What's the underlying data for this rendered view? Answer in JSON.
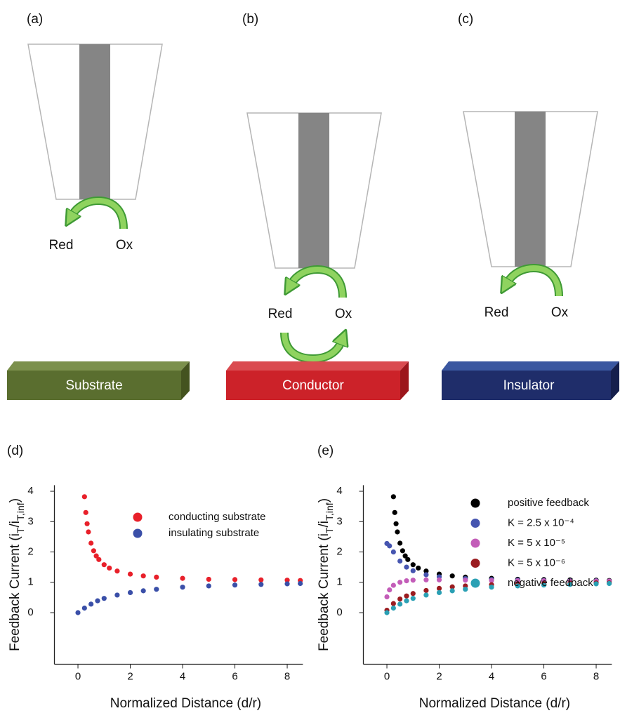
{
  "diagrams": {
    "panels": [
      {
        "label": "(a)",
        "red": "Red",
        "ox": "Ox",
        "substrate": "Substrate"
      },
      {
        "label": "(b)",
        "red": "Red",
        "ox": "Ox",
        "substrate": "Conductor"
      },
      {
        "label": "(c)",
        "red": "Red",
        "ox": "Ox",
        "substrate": "Insulator"
      }
    ]
  },
  "chart_data": [
    {
      "type": "scatter",
      "title": "(d)",
      "x_label": "Normalized Distance (d/r)",
      "y_label": [
        "Feedback Current (i",
        "T",
        "/i",
        "T,inf",
        ")"
      ],
      "xlim": [
        -0.9,
        8.6
      ],
      "ylim": [
        -1.7,
        4.2
      ],
      "xticks": [
        0,
        2,
        4,
        6,
        8
      ],
      "yticks": [
        0,
        1,
        2,
        3,
        4
      ],
      "legend": "upper right",
      "series": [
        {
          "name": "conducting substrate",
          "color": "#e8202a",
          "x": [
            0.25,
            0.3,
            0.35,
            0.4,
            0.5,
            0.6,
            0.7,
            0.8,
            1,
            1.2,
            1.5,
            2,
            2.5,
            3,
            4,
            5,
            6,
            7,
            8,
            8.5
          ],
          "values": [
            3.82,
            3.3,
            2.93,
            2.66,
            2.29,
            2.04,
            1.87,
            1.75,
            1.58,
            1.47,
            1.37,
            1.27,
            1.21,
            1.17,
            1.13,
            1.1,
            1.09,
            1.08,
            1.07,
            1.06
          ]
        },
        {
          "name": "insulating substrate",
          "color": "#3a4fa8",
          "x": [
            0,
            0.25,
            0.5,
            0.75,
            1,
            1.5,
            2,
            2.5,
            3,
            4,
            5,
            6,
            7,
            8,
            8.5
          ],
          "values": [
            0,
            0.15,
            0.28,
            0.39,
            0.47,
            0.58,
            0.66,
            0.72,
            0.77,
            0.84,
            0.88,
            0.91,
            0.93,
            0.95,
            0.96
          ]
        }
      ]
    },
    {
      "type": "scatter",
      "title": "(e)",
      "x_label": "Normalized Distance (d/r)",
      "y_label": [
        "Feedback Current (i",
        "T",
        "/i",
        "T,inf",
        ")"
      ],
      "xlim": [
        -0.9,
        8.6
      ],
      "ylim": [
        -1.7,
        4.2
      ],
      "xticks": [
        0,
        2,
        4,
        6,
        8
      ],
      "yticks": [
        0,
        1,
        2,
        3,
        4
      ],
      "legend": "upper right",
      "series": [
        {
          "name": "positive feedback",
          "color": "#000000",
          "x": [
            0.25,
            0.3,
            0.35,
            0.4,
            0.5,
            0.6,
            0.7,
            0.8,
            1,
            1.2,
            1.5,
            2,
            2.5,
            3,
            4,
            5,
            6,
            7,
            8,
            8.5
          ],
          "values": [
            3.82,
            3.3,
            2.93,
            2.66,
            2.29,
            2.04,
            1.87,
            1.75,
            1.58,
            1.47,
            1.37,
            1.27,
            1.21,
            1.17,
            1.13,
            1.1,
            1.09,
            1.08,
            1.07,
            1.06
          ]
        },
        {
          "name": "K = 2.5 x 10⁻⁴",
          "color": "#4655b0",
          "x": [
            0,
            0.1,
            0.25,
            0.5,
            0.75,
            1,
            1.5,
            2,
            3,
            4,
            5,
            6,
            7,
            8,
            8.5
          ],
          "values": [
            2.28,
            2.2,
            2.0,
            1.7,
            1.5,
            1.38,
            1.25,
            1.18,
            1.12,
            1.09,
            1.07,
            1.06,
            1.05,
            1.05,
            1.04
          ]
        },
        {
          "name": "K = 5 x 10⁻⁵",
          "color": "#c35cb8",
          "x": [
            0,
            0.1,
            0.25,
            0.5,
            0.75,
            1,
            1.5,
            2,
            3,
            4,
            5,
            6,
            7,
            8,
            8.5
          ],
          "values": [
            0.52,
            0.75,
            0.9,
            1.0,
            1.05,
            1.07,
            1.08,
            1.08,
            1.07,
            1.06,
            1.05,
            1.05,
            1.04,
            1.04,
            1.04
          ]
        },
        {
          "name": "K = 5 x 10⁻⁶",
          "color": "#9b1c20",
          "x": [
            0,
            0.25,
            0.5,
            0.75,
            1,
            1.5,
            2,
            2.5,
            3,
            4,
            5,
            6,
            7,
            8,
            8.5
          ],
          "values": [
            0.08,
            0.3,
            0.45,
            0.55,
            0.63,
            0.73,
            0.8,
            0.85,
            0.88,
            0.92,
            0.95,
            0.96,
            0.97,
            0.98,
            0.98
          ]
        },
        {
          "name": "negative feedback",
          "color": "#2aa0b4",
          "x": [
            0,
            0.25,
            0.5,
            0.75,
            1,
            1.5,
            2,
            2.5,
            3,
            4,
            5,
            6,
            7,
            8,
            8.5
          ],
          "values": [
            0,
            0.15,
            0.28,
            0.39,
            0.47,
            0.58,
            0.66,
            0.72,
            0.77,
            0.84,
            0.88,
            0.91,
            0.93,
            0.95,
            0.96
          ]
        }
      ]
    }
  ]
}
